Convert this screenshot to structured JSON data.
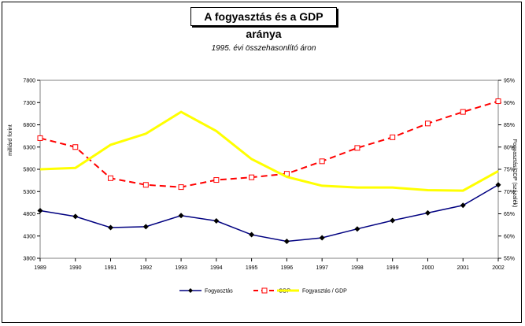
{
  "chart_data": {
    "type": "line",
    "title": "A fogyasztás és a GDP aránya",
    "subtitle": "1995. évi összehasonlító áron",
    "ylabel_left": "milliárd forint",
    "ylabel_right": "Fogyasztás/GDP (százalék)",
    "categories": [
      "1989",
      "1990",
      "1991",
      "1992",
      "1993",
      "1994",
      "1995",
      "1996",
      "1997",
      "1998",
      "1999",
      "2000",
      "2001",
      "2002"
    ],
    "y_left": {
      "min": 3800,
      "max": 7800,
      "ticks": [
        3800,
        4300,
        4800,
        5300,
        5800,
        6300,
        6800,
        7300,
        7800
      ]
    },
    "y_right": {
      "min": 55,
      "max": 95,
      "ticks": [
        "55%",
        "60%",
        "65%",
        "70%",
        "75%",
        "80%",
        "85%",
        "90%",
        "95%"
      ]
    },
    "series": [
      {
        "name": "Fogyasztás",
        "axis": "left",
        "color": "#000080",
        "values": [
          4870,
          4740,
          4490,
          4510,
          4760,
          4640,
          4330,
          4180,
          4260,
          4460,
          4650,
          4820,
          4990,
          5450
        ]
      },
      {
        "name": "GDP",
        "axis": "left",
        "color": "#ff0000",
        "values": [
          6500,
          6300,
          5600,
          5450,
          5400,
          5560,
          5620,
          5700,
          5980,
          6280,
          6520,
          6830,
          7090,
          7330
        ]
      },
      {
        "name": "Fogyasztás / GDP",
        "axis": "right",
        "color": "#ffff00",
        "values": [
          75.0,
          75.3,
          80.5,
          83.0,
          87.9,
          83.6,
          77.3,
          73.3,
          71.3,
          70.9,
          70.9,
          70.3,
          70.2,
          74.6
        ]
      }
    ],
    "legend": "bottom"
  }
}
